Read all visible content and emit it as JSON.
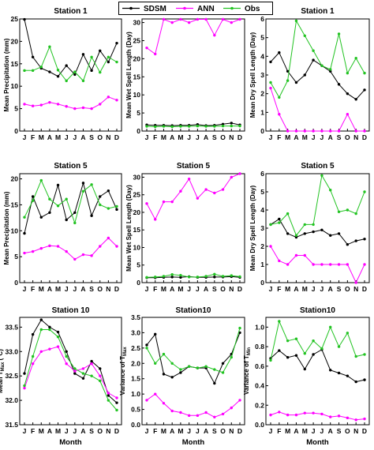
{
  "legend": [
    {
      "label": "SDSM",
      "color": "#000000"
    },
    {
      "label": "ANN",
      "color": "#ff00ff"
    },
    {
      "label": "Obs",
      "color": "#22c322"
    }
  ],
  "x_axis_label": "Month",
  "chart_data": [
    {
      "type": "line",
      "title": "Station 1",
      "ylabel": "Mean Precipitation (mm)",
      "ylim": [
        0,
        25
      ],
      "yticks": [
        0,
        5,
        10,
        15,
        20,
        25
      ],
      "categories": [
        "J",
        "F",
        "M",
        "A",
        "M",
        "J",
        "J",
        "A",
        "S",
        "O",
        "N",
        "D"
      ],
      "series": [
        {
          "name": "SDSM",
          "values": [
            24.9,
            16.5,
            14.0,
            13.2,
            12.2,
            14.6,
            12.6,
            17.1,
            13.5,
            17.9,
            15.4,
            19.6
          ]
        },
        {
          "name": "ANN",
          "values": [
            6.0,
            5.6,
            5.8,
            6.4,
            6.0,
            5.5,
            5.0,
            5.2,
            5.0,
            6.0,
            7.6,
            6.9
          ]
        },
        {
          "name": "Obs",
          "values": [
            13.5,
            13.5,
            14.3,
            18.8,
            13.6,
            11.2,
            13.2,
            11.2,
            16.5,
            13.1,
            16.5,
            15.4
          ]
        }
      ]
    },
    {
      "type": "line",
      "title": "",
      "ylabel": "Mean Wet Spell Length (Day)",
      "ylim": [
        0,
        31
      ],
      "yticks": [
        0,
        5,
        10,
        15,
        20,
        25,
        30
      ],
      "categories": [
        "J",
        "F",
        "M",
        "A",
        "M",
        "J",
        "J",
        "A",
        "S",
        "O",
        "N",
        "D"
      ],
      "series": [
        {
          "name": "SDSM",
          "values": [
            1.7,
            1.6,
            1.6,
            1.5,
            1.6,
            1.6,
            1.8,
            1.5,
            1.6,
            1.9,
            2.2,
            1.7
          ]
        },
        {
          "name": "ANN",
          "values": [
            23.0,
            21.3,
            30.9,
            30.0,
            30.9,
            30.0,
            30.9,
            30.9,
            26.5,
            30.9,
            30.0,
            30.9
          ]
        },
        {
          "name": "Obs",
          "values": [
            1.3,
            1.2,
            1.3,
            1.2,
            1.3,
            1.3,
            1.4,
            1.3,
            1.3,
            1.4,
            1.4,
            1.4
          ]
        }
      ]
    },
    {
      "type": "line",
      "title": "Station 1",
      "ylabel": "Mean Dry Spell Length (Day)",
      "ylim": [
        0,
        6
      ],
      "yticks": [
        0,
        1,
        2,
        3,
        4,
        5,
        6
      ],
      "categories": [
        "J",
        "F",
        "M",
        "A",
        "M",
        "J",
        "J",
        "A",
        "S",
        "O",
        "N",
        "D"
      ],
      "series": [
        {
          "name": "SDSM",
          "values": [
            3.7,
            4.2,
            3.2,
            2.6,
            3.0,
            3.8,
            3.5,
            3.2,
            2.5,
            2.0,
            1.7,
            2.2
          ]
        },
        {
          "name": "ANN",
          "values": [
            2.3,
            0.9,
            0.0,
            0.0,
            0.0,
            0.0,
            0.0,
            0.0,
            0.0,
            0.9,
            0.0,
            0.0
          ]
        },
        {
          "name": "Obs",
          "values": [
            2.6,
            1.8,
            2.7,
            5.9,
            5.1,
            4.3,
            3.5,
            3.3,
            5.2,
            3.1,
            3.9,
            3.1
          ]
        }
      ]
    },
    {
      "type": "line",
      "title": "Station 5",
      "ylabel": "Mean Precipitation (mm)",
      "ylim": [
        0,
        21
      ],
      "yticks": [
        0,
        5,
        10,
        15,
        20
      ],
      "categories": [
        "J",
        "F",
        "M",
        "A",
        "M",
        "J",
        "J",
        "A",
        "S",
        "O",
        "N",
        "D"
      ],
      "series": [
        {
          "name": "SDSM",
          "values": [
            9.5,
            16.6,
            12.6,
            13.5,
            18.8,
            12.1,
            13.5,
            19.2,
            12.9,
            16.6,
            17.7,
            14.1
          ]
        },
        {
          "name": "ANN",
          "values": [
            5.7,
            6.0,
            6.6,
            7.1,
            7.0,
            6.0,
            4.5,
            5.4,
            5.2,
            7.0,
            8.6,
            7.0
          ]
        },
        {
          "name": "Obs",
          "values": [
            12.6,
            15.8,
            19.7,
            16.1,
            14.8,
            16.1,
            11.5,
            17.6,
            18.9,
            15.0,
            14.3,
            14.7
          ]
        }
      ]
    },
    {
      "type": "line",
      "title": "Station  5",
      "ylabel": "Mean Wet Spell Length (Day)",
      "ylim": [
        0,
        31
      ],
      "yticks": [
        0,
        5,
        10,
        15,
        20,
        25,
        30
      ],
      "categories": [
        "J",
        "F",
        "M",
        "A",
        "M",
        "J",
        "J",
        "A",
        "S",
        "O",
        "N",
        "D"
      ],
      "series": [
        {
          "name": "SDSM",
          "values": [
            1.4,
            1.4,
            1.5,
            1.6,
            1.5,
            1.7,
            1.5,
            1.5,
            1.6,
            1.6,
            1.7,
            1.5
          ]
        },
        {
          "name": "ANN",
          "values": [
            22.5,
            18.0,
            23.0,
            23.0,
            26.0,
            29.5,
            24.0,
            26.5,
            25.5,
            26.5,
            30.0,
            31.0
          ]
        },
        {
          "name": "Obs",
          "values": [
            1.5,
            1.6,
            1.8,
            2.3,
            2.1,
            1.6,
            1.6,
            1.8,
            2.4,
            1.8,
            2.0,
            1.7
          ]
        }
      ]
    },
    {
      "type": "line",
      "title": "Station 5",
      "ylabel": "Mean Dry Spell Length (Day)",
      "ylim": [
        0,
        6
      ],
      "yticks": [
        0,
        1,
        2,
        3,
        4,
        5,
        6
      ],
      "categories": [
        "J",
        "F",
        "M",
        "A",
        "M",
        "J",
        "J",
        "A",
        "S",
        "O",
        "N",
        "D"
      ],
      "series": [
        {
          "name": "SDSM",
          "values": [
            3.2,
            3.5,
            2.7,
            2.5,
            2.7,
            2.8,
            2.9,
            2.6,
            2.7,
            2.1,
            2.3,
            2.4
          ]
        },
        {
          "name": "ANN",
          "values": [
            2.0,
            1.2,
            1.0,
            1.5,
            1.5,
            1.0,
            1.0,
            1.0,
            1.0,
            1.0,
            0.0,
            1.0
          ]
        },
        {
          "name": "Obs",
          "values": [
            3.2,
            3.3,
            3.8,
            2.6,
            3.2,
            3.2,
            5.9,
            5.1,
            3.9,
            4.0,
            3.8,
            5.0
          ]
        }
      ]
    },
    {
      "type": "line",
      "title": "Station 10",
      "ylabel": "Mean TMax (°C)",
      "ylim": [
        31.5,
        33.7
      ],
      "yticks": [
        31.5,
        32.0,
        32.5,
        33.0,
        33.5
      ],
      "categories": [
        "J",
        "F",
        "M",
        "A",
        "M",
        "J",
        "J",
        "A",
        "S",
        "O",
        "N",
        "D"
      ],
      "series": [
        {
          "name": "SDSM",
          "values": [
            32.55,
            33.35,
            33.65,
            33.5,
            33.4,
            33.0,
            32.55,
            32.45,
            32.8,
            32.65,
            32.1,
            31.95
          ]
        },
        {
          "name": "ANN",
          "values": [
            32.25,
            32.75,
            33.0,
            33.05,
            33.1,
            32.75,
            32.6,
            32.65,
            32.75,
            32.5,
            32.15,
            32.05
          ]
        },
        {
          "name": "Obs",
          "values": [
            32.3,
            32.9,
            33.45,
            33.45,
            33.3,
            32.9,
            32.65,
            32.55,
            32.5,
            32.4,
            32.0,
            31.8
          ]
        }
      ]
    },
    {
      "type": "line",
      "title": "Station10",
      "ylabel": "Variance of TMax",
      "ylim": [
        0,
        3.5
      ],
      "yticks": [
        0.0,
        0.5,
        1.0,
        1.5,
        2.0,
        2.5,
        3.0,
        3.5
      ],
      "categories": [
        "J",
        "F",
        "M",
        "A",
        "M",
        "J",
        "J",
        "A",
        "S",
        "O",
        "N",
        "D"
      ],
      "series": [
        {
          "name": "SDSM",
          "values": [
            2.6,
            2.95,
            1.65,
            1.55,
            1.7,
            1.9,
            1.85,
            1.85,
            1.35,
            2.0,
            2.3,
            3.0
          ]
        },
        {
          "name": "ANN",
          "values": [
            0.8,
            1.0,
            0.7,
            0.45,
            0.4,
            0.3,
            0.3,
            0.4,
            0.25,
            0.35,
            0.55,
            0.8
          ]
        },
        {
          "name": "Obs",
          "values": [
            2.5,
            2.0,
            2.3,
            2.0,
            1.8,
            1.9,
            1.85,
            1.9,
            1.8,
            1.7,
            2.2,
            3.15
          ]
        }
      ]
    },
    {
      "type": "line",
      "title": "Station10",
      "ylabel": "Variance of TMin",
      "ylim": [
        0,
        1.1
      ],
      "yticks": [
        0.0,
        0.2,
        0.4,
        0.6,
        0.8,
        1.0
      ],
      "categories": [
        "J",
        "F",
        "M",
        "A",
        "M",
        "J",
        "J",
        "A",
        "S",
        "O",
        "N",
        "D"
      ],
      "series": [
        {
          "name": "SDSM",
          "values": [
            0.68,
            0.76,
            0.69,
            0.71,
            0.57,
            0.72,
            0.77,
            0.56,
            0.53,
            0.5,
            0.44,
            0.46
          ]
        },
        {
          "name": "ANN",
          "values": [
            0.1,
            0.13,
            0.1,
            0.1,
            0.12,
            0.12,
            0.11,
            0.08,
            0.09,
            0.07,
            0.05,
            0.06
          ]
        },
        {
          "name": "Obs",
          "values": [
            0.66,
            1.06,
            0.86,
            0.88,
            0.73,
            0.86,
            0.78,
            1.0,
            0.8,
            0.94,
            0.7,
            0.72
          ]
        }
      ]
    }
  ]
}
